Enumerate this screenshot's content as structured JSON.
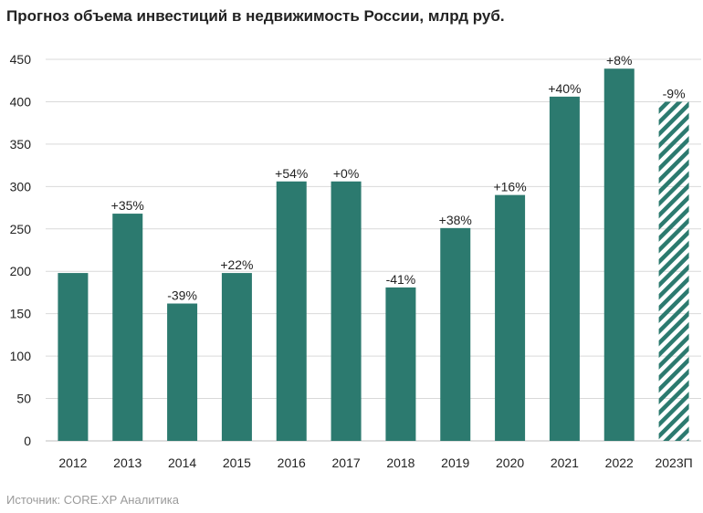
{
  "title": "Прогноз объема инвестиций в недвижимость России, млрд руб.",
  "source": "Источник: CORE.XP Аналитика",
  "colors": {
    "bar": "#2c7a6f",
    "grid": "#d9d9d9",
    "axis": "#bfbfbf",
    "text": "#222222",
    "source": "#9a9a9a"
  },
  "chart_data": {
    "type": "bar",
    "title": "Прогноз объема инвестиций в недвижимость России, млрд руб.",
    "xlabel": "",
    "ylabel": "",
    "categories": [
      "2012",
      "2013",
      "2014",
      "2015",
      "2016",
      "2017",
      "2018",
      "2019",
      "2020",
      "2021",
      "2022",
      "2023П"
    ],
    "values": [
      198,
      268,
      162,
      198,
      306,
      306,
      181,
      251,
      290,
      406,
      439,
      400
    ],
    "data_labels": [
      "",
      "+35%",
      "-39%",
      "+22%",
      "+54%",
      "+0%",
      "-41%",
      "+38%",
      "+16%",
      "+40%",
      "+8%",
      "-9%"
    ],
    "forecast": [
      false,
      false,
      false,
      false,
      false,
      false,
      false,
      false,
      false,
      false,
      false,
      true
    ],
    "ylim": [
      0,
      450
    ],
    "yticks": [
      0,
      50,
      100,
      150,
      200,
      250,
      300,
      350,
      400,
      450
    ],
    "grid": true,
    "legend": "none"
  }
}
